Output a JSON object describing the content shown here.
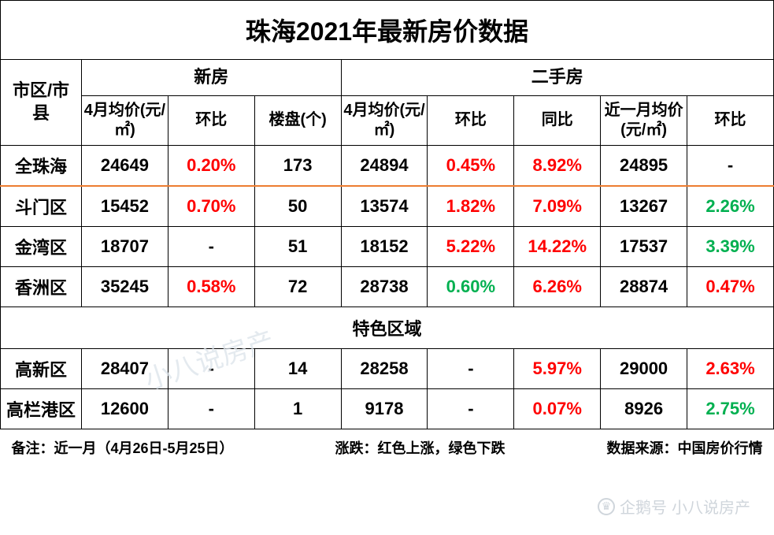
{
  "title": "珠海2021年最新房价数据",
  "colors": {
    "up": "#ff0000",
    "down": "#00b050",
    "border": "#000000",
    "orange_accent": "#ed7d31",
    "background": "#ffffff",
    "watermark": "#dce3ea",
    "watermark2": "#a9b4bf"
  },
  "typography": {
    "title_fontsize": 32,
    "header_fontsize": 22,
    "subheader_fontsize": 20,
    "data_fontsize": 22,
    "footer_fontsize": 18,
    "font_family": "Microsoft YaHei"
  },
  "headers": {
    "region": "市区/市县",
    "new_house": "新房",
    "second_hand": "二手房",
    "apr_avg": "4月均价(元/㎡)",
    "mom": "环比",
    "listings": "楼盘(个)",
    "yoy": "同比",
    "recent_month_avg": "近一月均价(元/㎡)"
  },
  "section_label": "特色区域",
  "rows_main": [
    {
      "region": "全珠海",
      "new_apr_avg": "24649",
      "new_mom": {
        "val": "0.20%",
        "dir": "up"
      },
      "listings": "173",
      "sh_apr_avg": "24894",
      "sh_mom": {
        "val": "0.45%",
        "dir": "up"
      },
      "sh_yoy": {
        "val": "8.92%",
        "dir": "up"
      },
      "recent_avg": "24895",
      "recent_mom": {
        "val": "-",
        "dir": "none"
      },
      "accent_bottom": true
    },
    {
      "region": "斗门区",
      "new_apr_avg": "15452",
      "new_mom": {
        "val": "0.70%",
        "dir": "up"
      },
      "listings": "50",
      "sh_apr_avg": "13574",
      "sh_mom": {
        "val": "1.82%",
        "dir": "up"
      },
      "sh_yoy": {
        "val": "7.09%",
        "dir": "up"
      },
      "recent_avg": "13267",
      "recent_mom": {
        "val": "2.26%",
        "dir": "down"
      }
    },
    {
      "region": "金湾区",
      "new_apr_avg": "18707",
      "new_mom": {
        "val": "-",
        "dir": "none"
      },
      "listings": "51",
      "sh_apr_avg": "18152",
      "sh_mom": {
        "val": "5.22%",
        "dir": "up"
      },
      "sh_yoy": {
        "val": "14.22%",
        "dir": "up"
      },
      "recent_avg": "17537",
      "recent_mom": {
        "val": "3.39%",
        "dir": "down"
      }
    },
    {
      "region": "香洲区",
      "new_apr_avg": "35245",
      "new_mom": {
        "val": "0.58%",
        "dir": "up"
      },
      "listings": "72",
      "sh_apr_avg": "28738",
      "sh_mom": {
        "val": "0.60%",
        "dir": "down"
      },
      "sh_yoy": {
        "val": "6.26%",
        "dir": "up"
      },
      "recent_avg": "28874",
      "recent_mom": {
        "val": "0.47%",
        "dir": "up"
      }
    }
  ],
  "rows_special": [
    {
      "region": "高新区",
      "new_apr_avg": "28407",
      "new_mom": {
        "val": "-",
        "dir": "none"
      },
      "listings": "14",
      "sh_apr_avg": "28258",
      "sh_mom": {
        "val": "-",
        "dir": "none"
      },
      "sh_yoy": {
        "val": "5.97%",
        "dir": "up"
      },
      "recent_avg": "29000",
      "recent_mom": {
        "val": "2.63%",
        "dir": "up"
      }
    },
    {
      "region": "高栏港区",
      "new_apr_avg": "12600",
      "new_mom": {
        "val": "-",
        "dir": "none"
      },
      "listings": "1",
      "sh_apr_avg": "9178",
      "sh_mom": {
        "val": "-",
        "dir": "none"
      },
      "sh_yoy": {
        "val": "0.07%",
        "dir": "up"
      },
      "recent_avg": "8926",
      "recent_mom": {
        "val": "2.75%",
        "dir": "down"
      }
    }
  ],
  "footer": {
    "note": "备注：近一月（4月26日-5月25日）",
    "legend": "涨跌：红色上涨，绿色下跌",
    "source": "数据来源：中国房价行情"
  },
  "watermark": "小八说房产",
  "watermark2_label": "企鹅号",
  "watermark2_name": "小八说房产"
}
